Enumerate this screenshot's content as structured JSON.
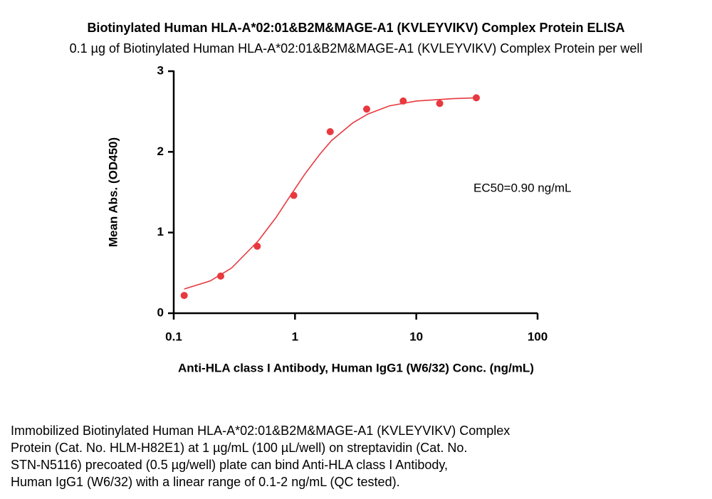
{
  "chart_data": {
    "type": "scatter",
    "title": "Biotinylated Human HLA-A*02:01&B2M&MAGE-A1 (KVLEYVIKV) Complex Protein ELISA",
    "subtitle": "0.1 µg of Biotinylated Human HLA-A*02:01&B2M&MAGE-A1 (KVLEYVIKV) Complex Protein per well",
    "xlabel": "Anti-HLA class I Antibody, Human IgG1 (W6/32) Conc. (ng/mL)",
    "ylabel": "Mean Abs. (OD450)",
    "annotation": "EC50=0.90 ng/mL",
    "xscale": "log",
    "xlim": [
      0.1,
      100
    ],
    "xticks": [
      0.1,
      1,
      10,
      100
    ],
    "ylim": [
      0,
      3
    ],
    "yticks": [
      0,
      1,
      2,
      3
    ],
    "color": "#e8393f",
    "series": [
      {
        "x": [
          0.122,
          0.244,
          0.488,
          0.977,
          1.95,
          3.9,
          7.8,
          15.6,
          31.25
        ],
        "values": [
          0.22,
          0.46,
          0.83,
          1.46,
          2.25,
          2.53,
          2.63,
          2.6,
          2.67
        ]
      },
      {
        "x": [
          0.122,
          0.2,
          0.3,
          0.5,
          0.7,
          0.9,
          1.2,
          1.6,
          2,
          3,
          4,
          6,
          10,
          20,
          31.25
        ],
        "values": [
          0.3,
          0.4,
          0.56,
          0.9,
          1.19,
          1.44,
          1.72,
          1.97,
          2.14,
          2.36,
          2.47,
          2.57,
          2.63,
          2.66,
          2.67
        ]
      }
    ],
    "caption": [
      "Immobilized Biotinylated Human HLA-A*02:01&B2M&MAGE-A1 (KVLEYVIKV) Complex",
      "Protein (Cat. No. HLM-H82E1) at 1 µg/mL (100 µL/well) on streptavidin (Cat. No.",
      "STN-N5116) precoated (0.5 µg/well) plate can bind Anti-HLA class I Antibody,",
      "Human IgG1 (W6/32) with a linear range of 0.1-2 ng/mL (QC tested)."
    ]
  }
}
